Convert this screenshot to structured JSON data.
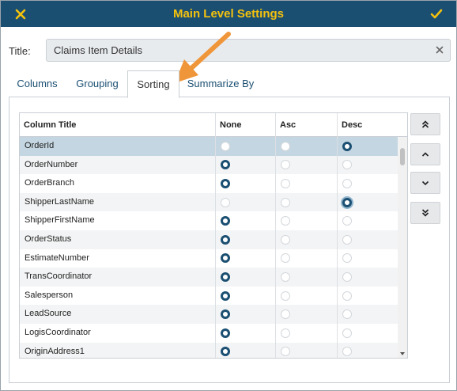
{
  "dialog": {
    "title": "Main Level Settings",
    "accent_color": "#f4c20d",
    "header_color": "#1b4f72"
  },
  "title_field": {
    "label": "Title:",
    "value": "Claims Item Details"
  },
  "tabs": [
    {
      "label": "Columns",
      "active": false
    },
    {
      "label": "Grouping",
      "active": false
    },
    {
      "label": "Sorting",
      "active": true
    },
    {
      "label": "Summarize By",
      "active": false
    }
  ],
  "grid": {
    "headers": [
      "Column Title",
      "None",
      "Asc",
      "Desc"
    ],
    "rows": [
      {
        "name": "OrderId",
        "sort": "desc"
      },
      {
        "name": "OrderNumber",
        "sort": "none"
      },
      {
        "name": "OrderBranch",
        "sort": "none"
      },
      {
        "name": "ShipperLastName",
        "sort": "desc"
      },
      {
        "name": "ShipperFirstName",
        "sort": "none"
      },
      {
        "name": "OrderStatus",
        "sort": "none"
      },
      {
        "name": "EstimateNumber",
        "sort": "none"
      },
      {
        "name": "TransCoordinator",
        "sort": "none"
      },
      {
        "name": "Salesperson",
        "sort": "none"
      },
      {
        "name": "LeadSource",
        "sort": "none"
      },
      {
        "name": "LogisCoordinator",
        "sort": "none"
      },
      {
        "name": "OriginAddress1",
        "sort": "none"
      }
    ]
  },
  "move_buttons": [
    {
      "icon": "double-chevron-up-icon",
      "action": "move-top"
    },
    {
      "icon": "chevron-up-icon",
      "action": "move-up"
    },
    {
      "icon": "chevron-down-icon",
      "action": "move-down"
    },
    {
      "icon": "double-chevron-down-icon",
      "action": "move-bottom"
    }
  ]
}
